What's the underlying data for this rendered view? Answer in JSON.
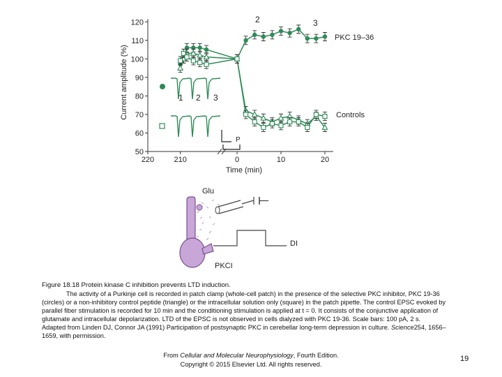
{
  "figure": {
    "upper_panel": {
      "y_axis_label": "Current amplitude (%)",
      "x_axis_label": "Time (min)",
      "series_labels": {
        "pkc": "PKC 19–36",
        "controls": "Controls"
      },
      "trace_numbers": [
        "1",
        "2",
        "3"
      ],
      "point_markers": {
        "two": "2",
        "three": "3"
      },
      "pairing_marker": "P",
      "colors": {
        "pkc": "#2e8b57",
        "controls": "#2e8b57",
        "traces": "#2e8b57",
        "axes": "#333333"
      }
    },
    "lower_panel": {
      "glu_label": "Glu",
      "di_label": "DI",
      "pkci_label": "PKCI",
      "colors": {
        "cell": "#c8a6d8",
        "cell_outline": "#7a4f92",
        "puffs": "#b79bc7"
      }
    }
  },
  "chart_data": {
    "type": "line",
    "xlabel": "Time (min)",
    "ylabel": "Current amplitude (%)",
    "x_ticks": [
      -220,
      -210,
      0,
      10,
      20
    ],
    "x_tick_labels": [
      "220",
      "210",
      "0",
      "10",
      "20"
    ],
    "y_ticks": [
      50,
      60,
      70,
      80,
      90,
      100,
      110,
      120
    ],
    "ylim": [
      50,
      125
    ],
    "axis_break": "x between -210 and 0",
    "series": [
      {
        "name": "PKC 19–36",
        "marker": "filled-circle",
        "x": [
          -210,
          -209,
          -208,
          -206,
          -204,
          -202,
          0,
          2,
          4,
          6,
          8,
          10,
          12,
          14,
          16,
          18,
          20
        ],
        "y": [
          97,
          100,
          106,
          106,
          106,
          105,
          100,
          110,
          113,
          112,
          113,
          115,
          114,
          116,
          111,
          111,
          112
        ]
      },
      {
        "name": "Controls",
        "marker": "open-triangle",
        "x": [
          -210,
          -209,
          -208,
          -206,
          -204,
          -202,
          0,
          2,
          4,
          6,
          8,
          10,
          12,
          14,
          16,
          18,
          20
        ],
        "y": [
          95,
          100,
          103,
          103,
          102,
          101,
          100,
          72,
          70,
          68,
          66,
          68,
          69,
          67,
          65,
          69,
          63
        ]
      },
      {
        "name": "Controls",
        "marker": "open-square",
        "x": [
          -210,
          -209,
          -208,
          -206,
          -204,
          -202,
          0,
          2,
          4,
          6,
          8,
          10,
          12,
          14,
          16,
          18,
          20
        ],
        "y": [
          99,
          103,
          101,
          99,
          98,
          97,
          100,
          70,
          66,
          63,
          65,
          64,
          66,
          66,
          63,
          70,
          69
        ]
      }
    ]
  },
  "caption": {
    "title": "Figure 18.18 Protein kinase C inhibition prevents LTD induction.",
    "body": "The activity of a Purkinje cell is recorded in patch clamp (whole-cell patch) in the presence of the selective PKC inhibitor, PKC 19-36 (circles) or a non-inhibitory control peptide (triangle) or the intracellular solution only (square) in the patch pipette. The control EPSC evoked by parallel fiber stimulation is recorded for 10 min and the conditioning stimulation is applied at t = 0. It consists of the conjunctive application of glutamate and intracellular depolarization. LTD of the EPSC is not observed in cells dialyzed with PKC 19-36. Scale bars: 100 pA, 2 s.",
    "source_prefix": "Adapted from Linden DJ, Connor JA (1991) Participation of postsynaptic PKC in cerebellar long-term depression in culture.",
    "source_journal": "Science",
    "source_suffix": "254, 1656–1659, with permission."
  },
  "footer": {
    "line1_prefix": "From ",
    "book_title": "Cellular and Molecular Neurophysiology",
    "line1_suffix": ", Fourth Edition.",
    "line2": "Copyright © 2015 Elsevier Ltd. All rights reserved."
  },
  "page_number": "19"
}
